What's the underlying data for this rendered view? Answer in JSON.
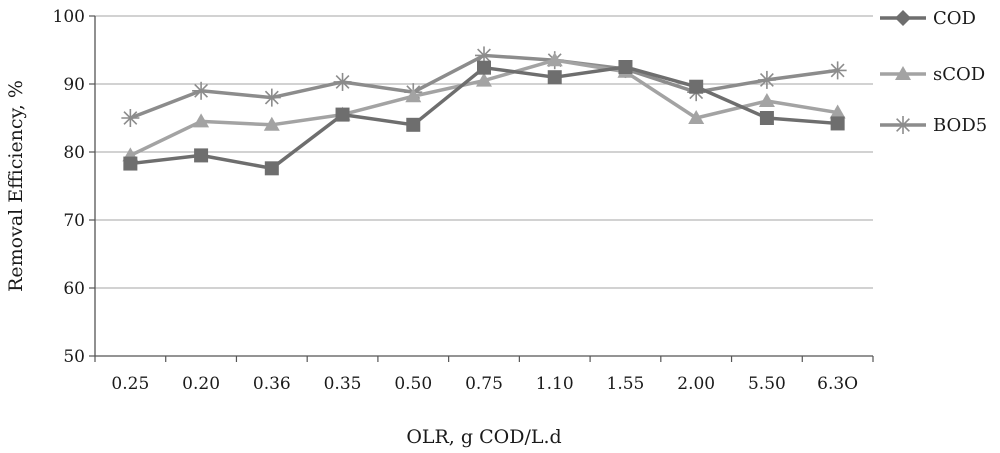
{
  "chart_data": {
    "type": "line",
    "title": "",
    "xlabel": "OLR, g COD/L.d",
    "ylabel": "Removal Efficiency, %",
    "categories": [
      "0.25",
      "0.20",
      "0.36",
      "0.35",
      "0.50",
      "0.75",
      "1.10",
      "1.55",
      "2.00",
      "5.50",
      "6.3O"
    ],
    "ylim": [
      50,
      100
    ],
    "yticks": [
      50,
      60,
      70,
      80,
      90,
      100
    ],
    "grid": true,
    "legend_position": "right",
    "series": [
      {
        "name": "COD",
        "marker": "square",
        "legend_marker": "diamond",
        "color": "#6e6e6e",
        "values": [
          78.3,
          79.5,
          77.6,
          85.5,
          84.0,
          92.4,
          91.0,
          92.5,
          89.6,
          85.0,
          84.2
        ]
      },
      {
        "name": "sCOD",
        "marker": "triangle",
        "legend_marker": "triangle",
        "color": "#a3a3a3",
        "values": [
          79.5,
          84.5,
          84.0,
          85.5,
          88.2,
          90.5,
          93.5,
          91.8,
          85.0,
          87.5,
          85.8
        ]
      },
      {
        "name": "BOD5",
        "marker": "star",
        "legend_marker": "star",
        "color": "#8c8c8c",
        "values": [
          85.0,
          89.0,
          88.0,
          90.3,
          88.8,
          94.2,
          93.5,
          92.2,
          88.8,
          90.6,
          92.0
        ]
      }
    ]
  }
}
